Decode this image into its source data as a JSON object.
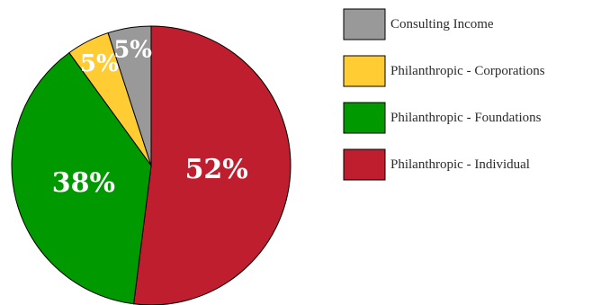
{
  "chart_data": {
    "type": "pie",
    "title": "",
    "start_angle_deg": 0,
    "direction": "clockwise",
    "legend_position": "right",
    "slices": [
      {
        "name": "Philanthropic - Individual",
        "value": 52,
        "label": "52%",
        "color": "#be1e2d"
      },
      {
        "name": "Philanthropic - Foundations",
        "value": 38,
        "label": "38%",
        "color": "#009900"
      },
      {
        "name": "Philanthropic - Corporations",
        "value": 5,
        "label": "5%",
        "color": "#ffcc33"
      },
      {
        "name": "Consulting Income",
        "value": 5,
        "label": "5%",
        "color": "#999999"
      }
    ],
    "legend": [
      {
        "name": "Consulting Income",
        "color": "#999999"
      },
      {
        "name": "Philanthropic - Corporations",
        "color": "#ffcc33"
      },
      {
        "name": "Philanthropic - Foundations",
        "color": "#009900"
      },
      {
        "name": "Philanthropic - Individual",
        "color": "#be1e2d"
      }
    ]
  }
}
